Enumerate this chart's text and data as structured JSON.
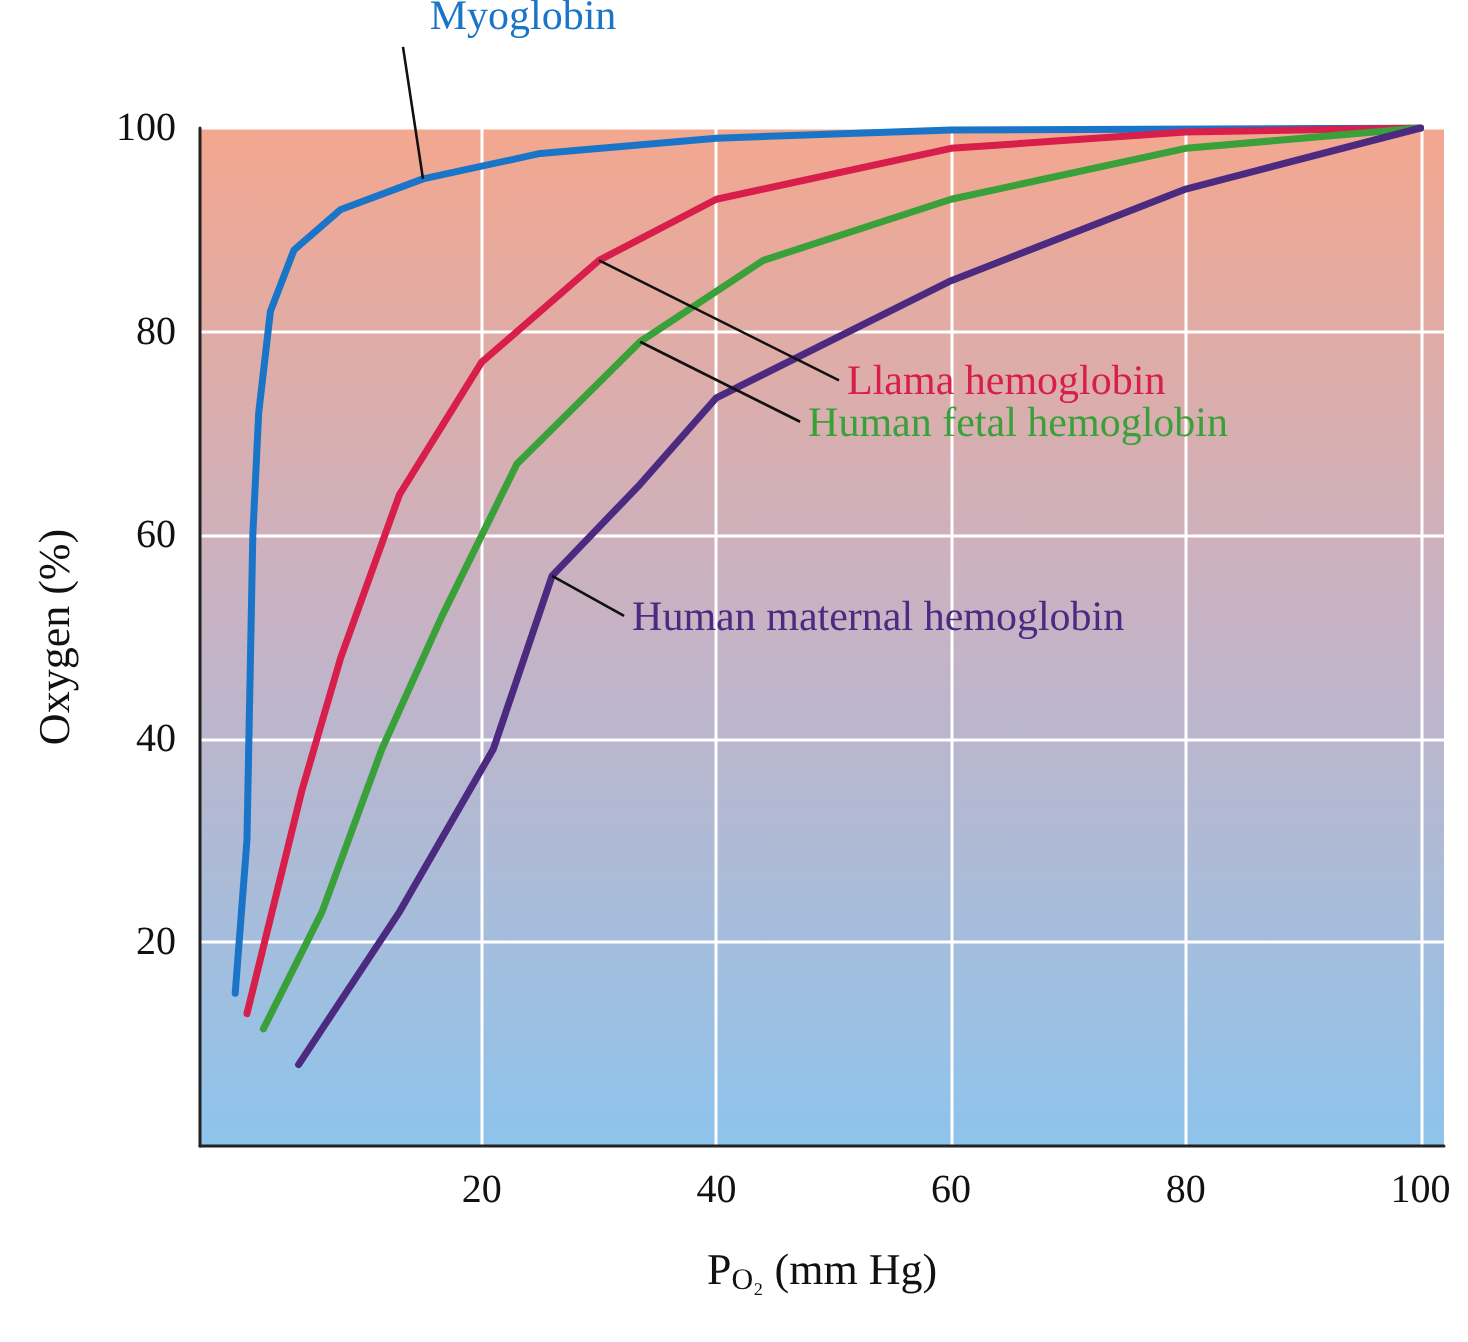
{
  "chart_data": {
    "type": "line",
    "xlabel": "P$_{O₂}$ (mm Hg)",
    "ylabel": "Oxygen (%)",
    "xlim": [
      -4,
      102
    ],
    "ylim": [
      0,
      100
    ],
    "xticks": [
      20,
      40,
      60,
      80,
      100
    ],
    "yticks": [
      20,
      40,
      60,
      80,
      100
    ],
    "grid": true,
    "legend": false,
    "marker": "none",
    "line_style": "solid",
    "series": [
      {
        "name": "Myoglobin",
        "color": "#1a75c8",
        "x": [
          -1,
          0,
          0.5,
          1,
          2,
          4,
          8,
          15,
          25,
          40,
          60,
          100
        ],
        "values": [
          15,
          30,
          60,
          72,
          82,
          88,
          92,
          95,
          97.5,
          99,
          99.8,
          100
        ]
      },
      {
        "name": "Llama hemoglobin",
        "color": "#d81e4a",
        "x": [
          0,
          4.7,
          8,
          13,
          20,
          30,
          40,
          60,
          80,
          100
        ],
        "values": [
          13,
          35,
          48,
          64,
          77,
          87,
          93,
          98,
          99.6,
          100
        ]
      },
      {
        "name": "Human fetal hemoglobin",
        "color": "#3aa03a",
        "x": [
          1.4,
          6.4,
          11.5,
          16.6,
          23,
          33.5,
          44,
          60,
          80,
          100
        ],
        "values": [
          11.5,
          23,
          39,
          52,
          67,
          79,
          87,
          93,
          98,
          100
        ]
      },
      {
        "name": "Human maternal hemoglobin",
        "color": "#4b2a80",
        "x": [
          4.4,
          13,
          21,
          26,
          33.5,
          40,
          60,
          80,
          100
        ],
        "values": [
          8,
          23,
          39,
          56,
          65,
          73.5,
          85,
          94,
          100
        ]
      }
    ]
  }
}
